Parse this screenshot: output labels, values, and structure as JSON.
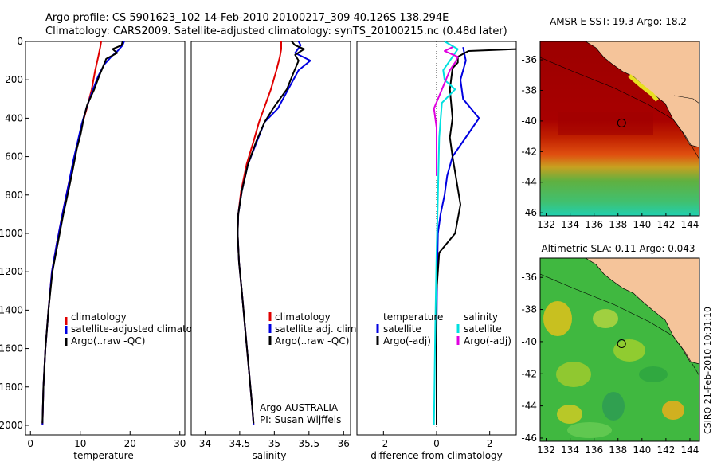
{
  "header": {
    "line1": "Argo profile: CS 5901623_102 14-Feb-2010 20100217_309 40.126S 138.294E",
    "line2": "Climatology: CARS2009. Satellite-adjusted climatology: synTS_20100215.nc (0.48d later)"
  },
  "side_label": "CSIRO 21-Feb-2010 10:31:10",
  "colors": {
    "red": "#e00000",
    "blue": "#0000e0",
    "black": "#000000",
    "cyan": "#00e0e0",
    "magenta": "#e000e0"
  },
  "chart_data": [
    {
      "type": "line",
      "id": "temperature",
      "xlabel": "temperature",
      "xlim": [
        -1,
        31
      ],
      "ylim": [
        2050,
        0
      ],
      "xticks": [
        "0",
        "10",
        "20",
        "30"
      ],
      "yticks": [
        "0",
        "200",
        "400",
        "600",
        "800",
        "1000",
        "1200",
        "1400",
        "1600",
        "1800",
        "2000"
      ],
      "legend": [
        "climatology",
        "satellite-adjusted climatology",
        "Argo(..raw -QC)"
      ],
      "series": [
        {
          "name": "climatology",
          "color": "red",
          "points": [
            [
              14.2,
              0
            ],
            [
              14.0,
              30
            ],
            [
              13.6,
              80
            ],
            [
              13.0,
              150
            ],
            [
              12.3,
              250
            ],
            [
              11.3,
              350
            ],
            [
              10.5,
              420
            ],
            [
              9.6,
              520
            ],
            [
              8.7,
              620
            ],
            [
              7.6,
              750
            ],
            [
              6.4,
              900
            ],
            [
              5.3,
              1050
            ],
            [
              4.3,
              1200
            ],
            [
              3.6,
              1400
            ],
            [
              3.0,
              1600
            ],
            [
              2.6,
              1800
            ],
            [
              2.4,
              2000
            ]
          ]
        },
        {
          "name": "satellite-adjusted climatology",
          "color": "blue",
          "points": [
            [
              18.8,
              0
            ],
            [
              18.5,
              20
            ],
            [
              17.5,
              50
            ],
            [
              16.2,
              80
            ],
            [
              14.8,
              120
            ],
            [
              13.6,
              180
            ],
            [
              12.4,
              260
            ],
            [
              11.2,
              350
            ],
            [
              10.3,
              430
            ],
            [
              9.5,
              520
            ],
            [
              8.6,
              620
            ],
            [
              7.6,
              750
            ],
            [
              6.4,
              900
            ],
            [
              5.3,
              1050
            ],
            [
              4.3,
              1200
            ],
            [
              3.6,
              1400
            ],
            [
              3.0,
              1600
            ],
            [
              2.6,
              1800
            ],
            [
              2.4,
              2000
            ]
          ]
        },
        {
          "name": "Argo(..raw -QC)",
          "color": "black",
          "points": [
            [
              18.5,
              0
            ],
            [
              18.3,
              20
            ],
            [
              16.5,
              40
            ],
            [
              17.4,
              60
            ],
            [
              15.2,
              90
            ],
            [
              14.6,
              130
            ],
            [
              13.8,
              180
            ],
            [
              12.8,
              250
            ],
            [
              11.4,
              330
            ],
            [
              10.7,
              400
            ],
            [
              10.1,
              480
            ],
            [
              9.3,
              560
            ],
            [
              8.4,
              680
            ],
            [
              7.6,
              780
            ],
            [
              6.6,
              900
            ],
            [
              5.5,
              1050
            ],
            [
              4.4,
              1200
            ],
            [
              3.6,
              1400
            ],
            [
              3.0,
              1600
            ],
            [
              2.6,
              1800
            ],
            [
              2.4,
              1990
            ]
          ]
        }
      ]
    },
    {
      "type": "line",
      "id": "salinity",
      "xlabel": "salinity",
      "xlim": [
        33.8,
        36.1
      ],
      "ylim": [
        2050,
        0
      ],
      "xticks": [
        "34",
        "34.5",
        "35",
        "35.5",
        "36"
      ],
      "legend": [
        "climatology",
        "satellite adj. clim.",
        "Argo(..raw -QC)"
      ],
      "annotation": [
        "Argo AUSTRALIA",
        "PI: Susan Wijffels"
      ],
      "series": [
        {
          "name": "climatology",
          "color": "red",
          "points": [
            [
              35.1,
              0
            ],
            [
              35.1,
              40
            ],
            [
              35.08,
              80
            ],
            [
              35.03,
              150
            ],
            [
              34.95,
              250
            ],
            [
              34.85,
              350
            ],
            [
              34.78,
              420
            ],
            [
              34.7,
              520
            ],
            [
              34.6,
              640
            ],
            [
              34.52,
              780
            ],
            [
              34.48,
              900
            ],
            [
              34.47,
              1000
            ],
            [
              34.49,
              1150
            ],
            [
              34.53,
              1300
            ],
            [
              34.58,
              1500
            ],
            [
              34.63,
              1700
            ],
            [
              34.68,
              1900
            ],
            [
              34.7,
              2000
            ]
          ]
        },
        {
          "name": "satellite adj. clim.",
          "color": "blue",
          "points": [
            [
              35.35,
              0
            ],
            [
              35.38,
              20
            ],
            [
              35.3,
              60
            ],
            [
              35.52,
              100
            ],
            [
              35.35,
              150
            ],
            [
              35.2,
              250
            ],
            [
              35.05,
              350
            ],
            [
              34.86,
              420
            ],
            [
              34.75,
              520
            ],
            [
              34.62,
              640
            ],
            [
              34.53,
              780
            ],
            [
              34.48,
              900
            ],
            [
              34.47,
              1000
            ],
            [
              34.49,
              1150
            ],
            [
              34.53,
              1300
            ],
            [
              34.58,
              1500
            ],
            [
              34.63,
              1700
            ],
            [
              34.68,
              1900
            ],
            [
              34.7,
              2000
            ]
          ]
        },
        {
          "name": "Argo(..raw -QC)",
          "color": "black",
          "points": [
            [
              35.25,
              0
            ],
            [
              35.3,
              20
            ],
            [
              35.43,
              40
            ],
            [
              35.3,
              70
            ],
            [
              35.35,
              100
            ],
            [
              35.28,
              160
            ],
            [
              35.18,
              250
            ],
            [
              35.0,
              340
            ],
            [
              34.86,
              420
            ],
            [
              34.74,
              520
            ],
            [
              34.62,
              640
            ],
            [
              34.53,
              780
            ],
            [
              34.48,
              900
            ],
            [
              34.47,
              1000
            ],
            [
              34.49,
              1150
            ],
            [
              34.53,
              1300
            ],
            [
              34.58,
              1500
            ],
            [
              34.63,
              1700
            ],
            [
              34.68,
              1900
            ],
            [
              34.7,
              1990
            ]
          ]
        }
      ]
    },
    {
      "type": "line",
      "id": "difference",
      "xlabel": "difference from climatology",
      "xlim": [
        -3,
        3
      ],
      "ylim": [
        2050,
        0
      ],
      "xticks": [
        "-2",
        "0",
        "2"
      ],
      "legend_groups": [
        {
          "title": "temperature",
          "items": [
            "satellite",
            "Argo(-adj)"
          ]
        },
        {
          "title": "salinity",
          "items": [
            "satellite",
            "Argo(-adj)"
          ]
        }
      ],
      "series": [
        {
          "name": "temperature satellite",
          "color": "blue",
          "points": [
            [
              1.0,
              30
            ],
            [
              1.1,
              100
            ],
            [
              0.9,
              200
            ],
            [
              1.0,
              300
            ],
            [
              1.6,
              400
            ],
            [
              1.1,
              500
            ],
            [
              0.6,
              600
            ],
            [
              0.4,
              700
            ],
            [
              0.3,
              800
            ],
            [
              0.15,
              900
            ],
            [
              0.05,
              1000
            ],
            [
              0.02,
              1200
            ],
            [
              0.0,
              1500
            ],
            [
              0.0,
              1800
            ],
            [
              0.0,
              2000
            ]
          ]
        },
        {
          "name": "temperature Argo(-adj)",
          "color": "black",
          "points": [
            [
              3.0,
              40
            ],
            [
              1.2,
              50
            ],
            [
              0.8,
              80
            ],
            [
              0.8,
              110
            ],
            [
              0.6,
              140
            ],
            [
              0.5,
              250
            ],
            [
              0.6,
              400
            ],
            [
              0.5,
              500
            ],
            [
              0.6,
              600
            ],
            [
              0.9,
              850
            ],
            [
              0.7,
              1000
            ],
            [
              0.1,
              1100
            ],
            [
              0.0,
              1300
            ],
            [
              0.0,
              1600
            ],
            [
              0.0,
              2000
            ]
          ]
        },
        {
          "name": "salinity satellite",
          "color": "cyan",
          "points": [
            [
              0.3,
              0
            ],
            [
              0.8,
              40
            ],
            [
              0.5,
              100
            ],
            [
              0.25,
              150
            ],
            [
              0.3,
              200
            ],
            [
              0.7,
              250
            ],
            [
              0.2,
              320
            ],
            [
              0.1,
              500
            ],
            [
              0.05,
              800
            ],
            [
              0.0,
              1100
            ],
            [
              -0.05,
              1500
            ],
            [
              -0.1,
              2000
            ]
          ]
        },
        {
          "name": "salinity Argo(-adj)",
          "color": "magenta",
          "points": [
            [
              0.6,
              30
            ],
            [
              0.3,
              50
            ],
            [
              0.8,
              80
            ],
            [
              0.7,
              110
            ],
            [
              0.5,
              150
            ],
            [
              0.2,
              250
            ],
            [
              -0.1,
              350
            ],
            [
              0.0,
              450
            ],
            [
              0.0,
              550
            ],
            [
              0.0,
              700
            ]
          ]
        }
      ]
    },
    {
      "type": "heatmap",
      "id": "sst-map",
      "title": "AMSR-E SST: 19.3 Argo: 18.2",
      "xlim": [
        131.5,
        144.8
      ],
      "ylim": [
        -46.2,
        -34.8
      ],
      "xticks": [
        "132",
        "134",
        "136",
        "138",
        "140",
        "142",
        "144"
      ],
      "yticks": [
        "-36",
        "-38",
        "-40",
        "-42",
        "-44",
        "-46"
      ],
      "marker": [
        138.3,
        -40.13
      ]
    },
    {
      "type": "heatmap",
      "id": "sla-map",
      "title": "Altimetric SLA: 0.11 Argo: 0.043",
      "xlim": [
        131.5,
        144.8
      ],
      "ylim": [
        -46.2,
        -34.8
      ],
      "xticks": [
        "132",
        "134",
        "136",
        "138",
        "140",
        "142",
        "144"
      ],
      "yticks": [
        "-36",
        "-38",
        "-40",
        "-42",
        "-44",
        "-46"
      ],
      "marker": [
        138.3,
        -40.13
      ]
    }
  ]
}
